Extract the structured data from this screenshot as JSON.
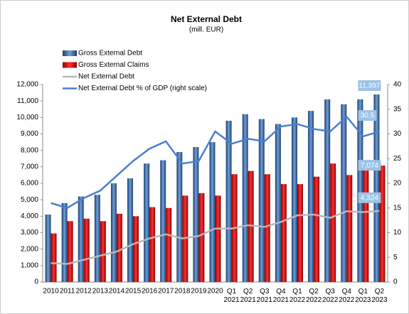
{
  "chart_data": {
    "type": "bar",
    "title": "Net External Debt",
    "subtitle": "(mill. EUR)",
    "categories": [
      "2010",
      "2011",
      "2012",
      "2013",
      "2014",
      "2015",
      "2016",
      "2017",
      "2018",
      "2019",
      "2020",
      "Q1 2021",
      "Q2 2021",
      "Q3 2021",
      "Q4 2021",
      "Q1 2022",
      "Q2 2022",
      "Q3 2022",
      "Q4 2022",
      "Q1 2023",
      "Q2 2023"
    ],
    "series": [
      {
        "name": "Gross External Debt",
        "type": "bar",
        "color": "#2e5f9e",
        "values": [
          4100,
          4800,
          5200,
          5300,
          6000,
          6300,
          7200,
          7400,
          7900,
          8200,
          8500,
          9800,
          10200,
          9900,
          9600,
          10000,
          10400,
          11100,
          10800,
          11100,
          11397
        ],
        "value_labels": [
          null,
          null,
          null,
          null,
          null,
          null,
          null,
          null,
          null,
          null,
          null,
          null,
          null,
          null,
          null,
          null,
          null,
          null,
          null,
          null,
          "11,397"
        ]
      },
      {
        "name": "Gross External Claims",
        "type": "bar",
        "color": "#d01010",
        "values": [
          2950,
          3700,
          3850,
          3700,
          4150,
          4000,
          4550,
          4500,
          5250,
          5400,
          5250,
          6550,
          6750,
          6550,
          5950,
          5950,
          6400,
          7200,
          6500,
          6850,
          7074
        ],
        "value_labels": [
          null,
          null,
          null,
          null,
          null,
          null,
          null,
          null,
          null,
          null,
          null,
          null,
          null,
          null,
          null,
          null,
          null,
          null,
          null,
          null,
          "7,074"
        ]
      },
      {
        "name": "Net External Debt",
        "type": "line",
        "color": "#b8b8b8",
        "values": [
          1150,
          1100,
          1350,
          1600,
          1850,
          2300,
          2650,
          2900,
          2650,
          2800,
          3250,
          3250,
          3450,
          3350,
          3650,
          4050,
          4100,
          3900,
          4300,
          4250,
          4324
        ],
        "value_labels": [
          null,
          null,
          null,
          null,
          null,
          null,
          null,
          null,
          null,
          null,
          null,
          null,
          null,
          null,
          null,
          null,
          null,
          null,
          null,
          null,
          "4,324"
        ]
      },
      {
        "name": "Net External Debt % of GDP (right scale)",
        "type": "line",
        "axis": "y2",
        "color": "#4a7fd0",
        "values": [
          16,
          15,
          17,
          18.5,
          21.5,
          24.5,
          27,
          28.5,
          24,
          24.5,
          30.5,
          28,
          29,
          28.5,
          31.5,
          32,
          31,
          30.5,
          33.5,
          29.5,
          30.5
        ]
      }
    ],
    "ylim": [
      0,
      12000
    ],
    "yticks": [
      0,
      {
        "value": 1000,
        "label": "1,000"
      },
      {
        "value": 2000,
        "label": "2,000"
      },
      {
        "value": 3000,
        "label": "3,000"
      },
      {
        "value": 4000,
        "label": "4,000"
      },
      {
        "value": 5000,
        "label": "5,000"
      },
      {
        "value": 6000,
        "label": "6,000"
      },
      {
        "value": 7000,
        "label": "7,000"
      },
      {
        "value": 8000,
        "label": "8,000"
      },
      {
        "value": 9000,
        "label": "9,000"
      },
      {
        "value": 10000,
        "label": "10,000"
      },
      {
        "value": 11000,
        "label": "11,000"
      },
      {
        "value": 12000,
        "label": "12,000"
      }
    ],
    "y2lim": [
      0,
      40
    ],
    "y2ticks": [
      0,
      5,
      10,
      15,
      20,
      25,
      30,
      35,
      40
    ],
    "legend": "top-left"
  }
}
